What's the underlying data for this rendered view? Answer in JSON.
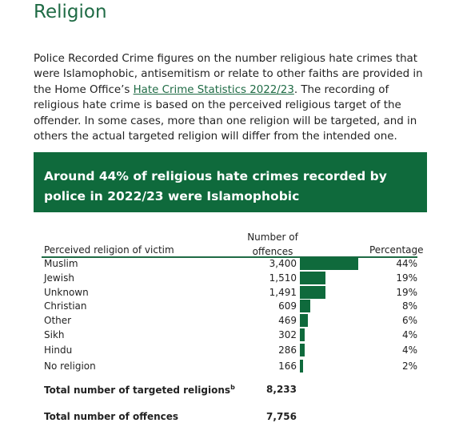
{
  "header": {
    "title": "Religion"
  },
  "intro": {
    "text_before": "Police Recorded Crime figures on the number religious hate crimes that were Islamophobic, antisemitism or relate to other faiths are provided in the Home Office’s ",
    "link": "Hate Crime Statistics 2022/23",
    "text_after": ". The recording of religious hate crime is based on the perceived religious target of the offender. In some cases, more than one religion will be targeted, and in others the actual targeted religion will differ from the intended one."
  },
  "callout": "Around 44% of religious hate crimes recorded by police in 2022/23 were Islamophobic",
  "table": {
    "columns": [
      "Perceived religion of victim",
      "Number of offences",
      "Percentage"
    ],
    "rows": [
      {
        "religion": "Muslim",
        "offences": 3400,
        "offences_label": "3,400",
        "percentage": "44%"
      },
      {
        "religion": "Jewish",
        "offences": 1510,
        "offences_label": "1,510",
        "percentage": "19%"
      },
      {
        "religion": "Unknown",
        "offences": 1491,
        "offences_label": "1,491",
        "percentage": "19%"
      },
      {
        "religion": "Christian",
        "offences": 609,
        "offences_label": "609",
        "percentage": "8%"
      },
      {
        "religion": "Other",
        "offences": 469,
        "offences_label": "469",
        "percentage": "6%"
      },
      {
        "religion": "Sikh",
        "offences": 302,
        "offences_label": "302",
        "percentage": "4%"
      },
      {
        "religion": "Hindu",
        "offences": 286,
        "offences_label": "286",
        "percentage": "4%"
      },
      {
        "religion": "No religion",
        "offences": 166,
        "offences_label": "166",
        "percentage": "2%"
      }
    ],
    "totals": [
      {
        "label": "Total number of targeted religions",
        "footnote": "b",
        "value": "8,233"
      },
      {
        "label": "Total number of offences",
        "value": "7,756"
      }
    ]
  }
}
